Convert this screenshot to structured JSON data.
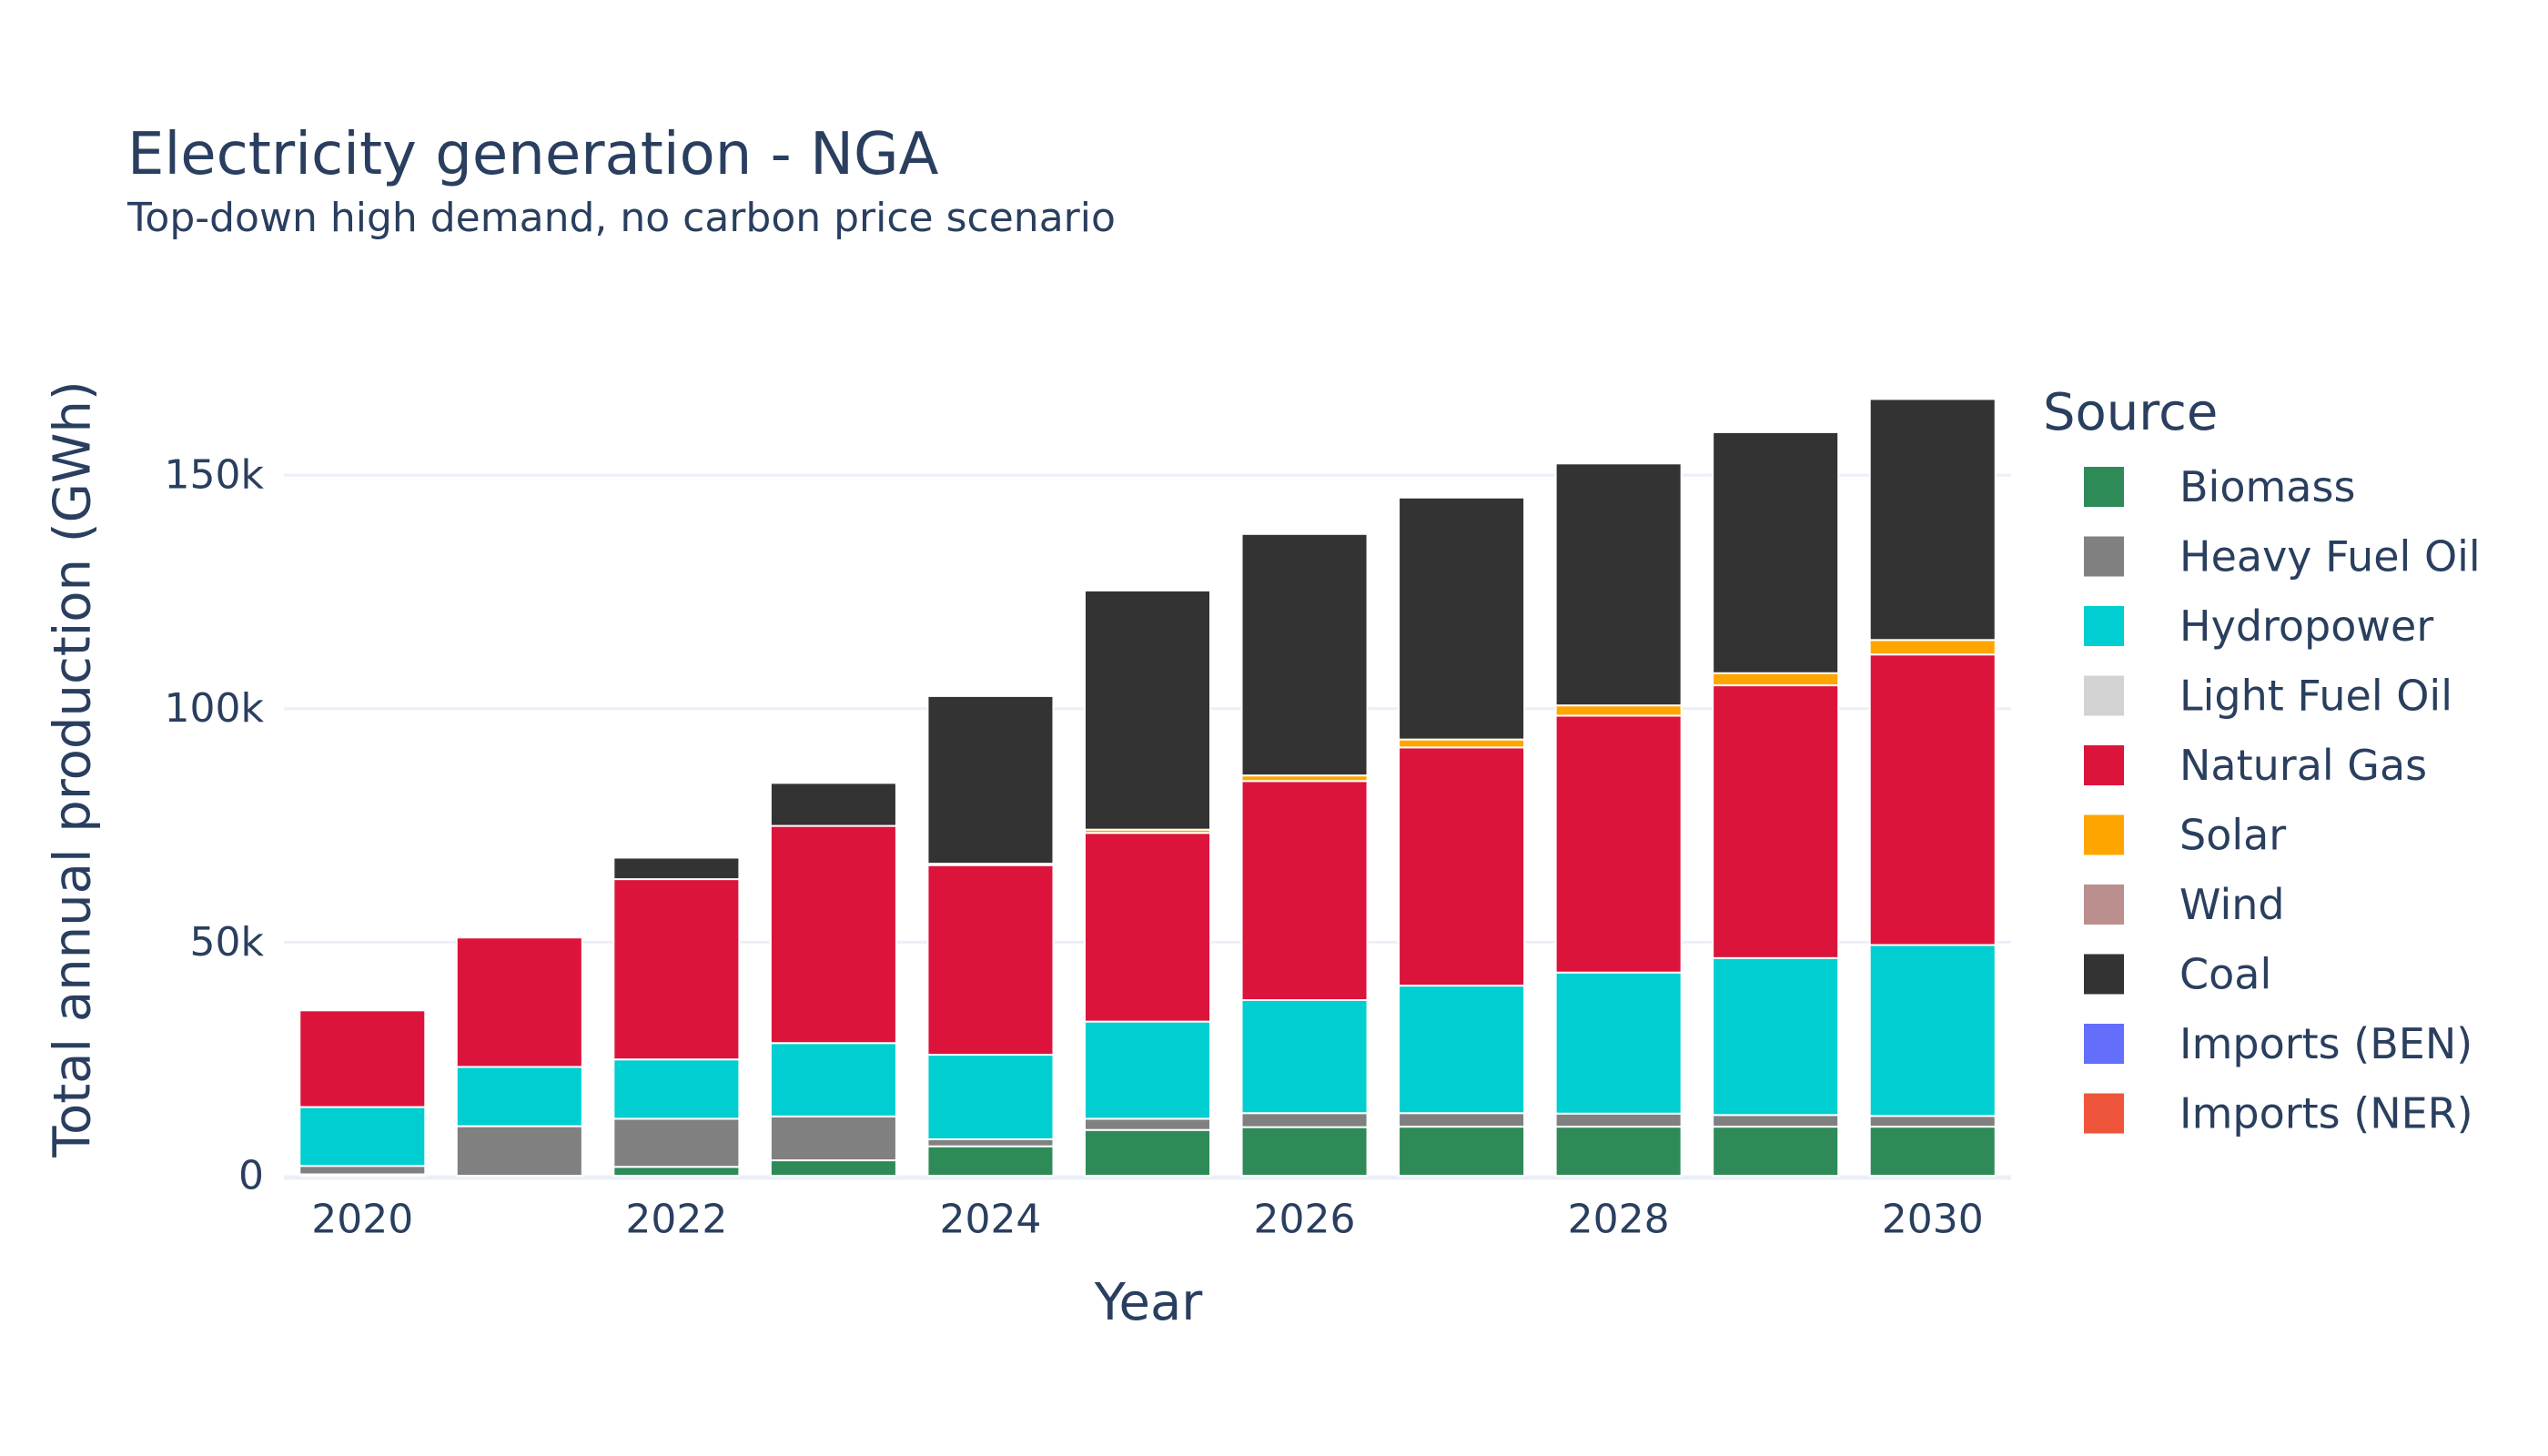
{
  "chart_data": {
    "type": "bar",
    "stacked": true,
    "title": "Electricity generation - NGA",
    "subtitle": "Top-down high demand, no carbon price scenario",
    "xlabel": "Year",
    "ylabel": "Total annual production (GWh)",
    "legend_title": "Source",
    "legend_position": "right",
    "grid": true,
    "ylim": [
      0,
      166000
    ],
    "y_ticks": [
      {
        "value": 0,
        "label": "0"
      },
      {
        "value": 50000,
        "label": "50k"
      },
      {
        "value": 100000,
        "label": "100k"
      },
      {
        "value": 150000,
        "label": "150k"
      }
    ],
    "x_ticks": [
      {
        "value": 2020,
        "label": "2020"
      },
      {
        "value": 2022,
        "label": "2022"
      },
      {
        "value": 2024,
        "label": "2024"
      },
      {
        "value": 2026,
        "label": "2026"
      },
      {
        "value": 2028,
        "label": "2028"
      },
      {
        "value": 2030,
        "label": "2030"
      }
    ],
    "x": [
      2020,
      2021,
      2022,
      2023,
      2024,
      2025,
      2026,
      2027,
      2028,
      2029,
      2030
    ],
    "series": [
      {
        "name": "Biomass",
        "color": "#2e8b57",
        "values": [
          300,
          0,
          1900,
          3300,
          6300,
          9800,
          10400,
          10500,
          10500,
          10500,
          10500
        ]
      },
      {
        "name": "Heavy Fuel Oil",
        "color": "#808080",
        "values": [
          1800,
          10600,
          10300,
          9400,
          1500,
          2400,
          3000,
          2900,
          2800,
          2500,
          2300
        ]
      },
      {
        "name": "Hydropower",
        "color": "#00ced1",
        "values": [
          12600,
          12700,
          12700,
          15700,
          18100,
          20800,
          24200,
          27300,
          30200,
          33600,
          36600
        ]
      },
      {
        "name": "Light Fuel Oil",
        "color": "#d3d3d3",
        "values": [
          0,
          0,
          0,
          0,
          0,
          0,
          0,
          0,
          0,
          0,
          0
        ]
      },
      {
        "name": "Natural Gas",
        "color": "#dc143c",
        "values": [
          20700,
          27700,
          38600,
          46500,
          40600,
          40400,
          46900,
          51000,
          55000,
          58400,
          62200
        ]
      },
      {
        "name": "Solar",
        "color": "#ffa500",
        "values": [
          0,
          0,
          0,
          0,
          300,
          700,
          1200,
          1700,
          2200,
          2600,
          3100
        ]
      },
      {
        "name": "Wind",
        "color": "#bc8f8f",
        "values": [
          0,
          0,
          0,
          0,
          0,
          0,
          0,
          0,
          0,
          0,
          0
        ]
      },
      {
        "name": "Coal",
        "color": "#333333",
        "values": [
          0,
          0,
          4600,
          9200,
          35900,
          51200,
          51700,
          51800,
          51800,
          51600,
          51600
        ]
      },
      {
        "name": "Imports (BEN)",
        "color": "#636efa",
        "values": [
          0,
          0,
          0,
          0,
          0,
          0,
          0,
          0,
          0,
          0,
          0
        ]
      },
      {
        "name": "Imports (NER)",
        "color": "#ef553b",
        "values": [
          0,
          0,
          0,
          0,
          0,
          0,
          0,
          0,
          0,
          0,
          0
        ]
      }
    ]
  }
}
